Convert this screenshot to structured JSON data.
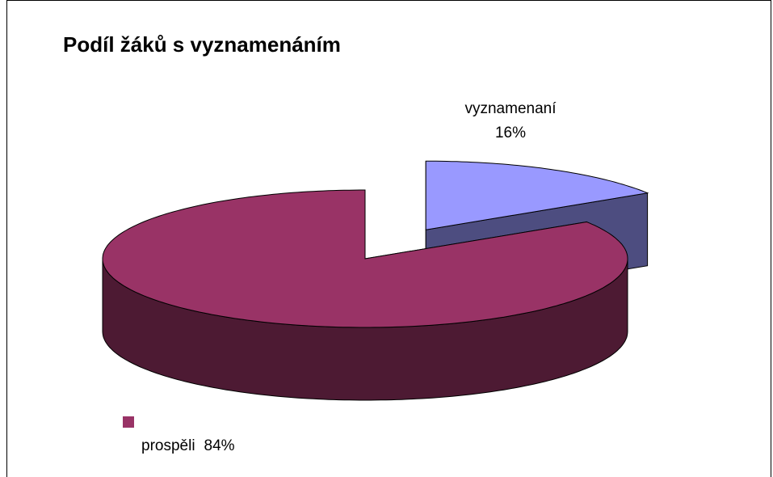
{
  "chart_data": {
    "type": "pie3d",
    "title": "Podíl žáků s vyznamenáním",
    "categories": [
      "vyznamenaní",
      "prospěli"
    ],
    "values": [
      16,
      84
    ],
    "value_labels": [
      "16%",
      "84%"
    ],
    "colors": [
      "#9999ff",
      "#993366"
    ]
  }
}
